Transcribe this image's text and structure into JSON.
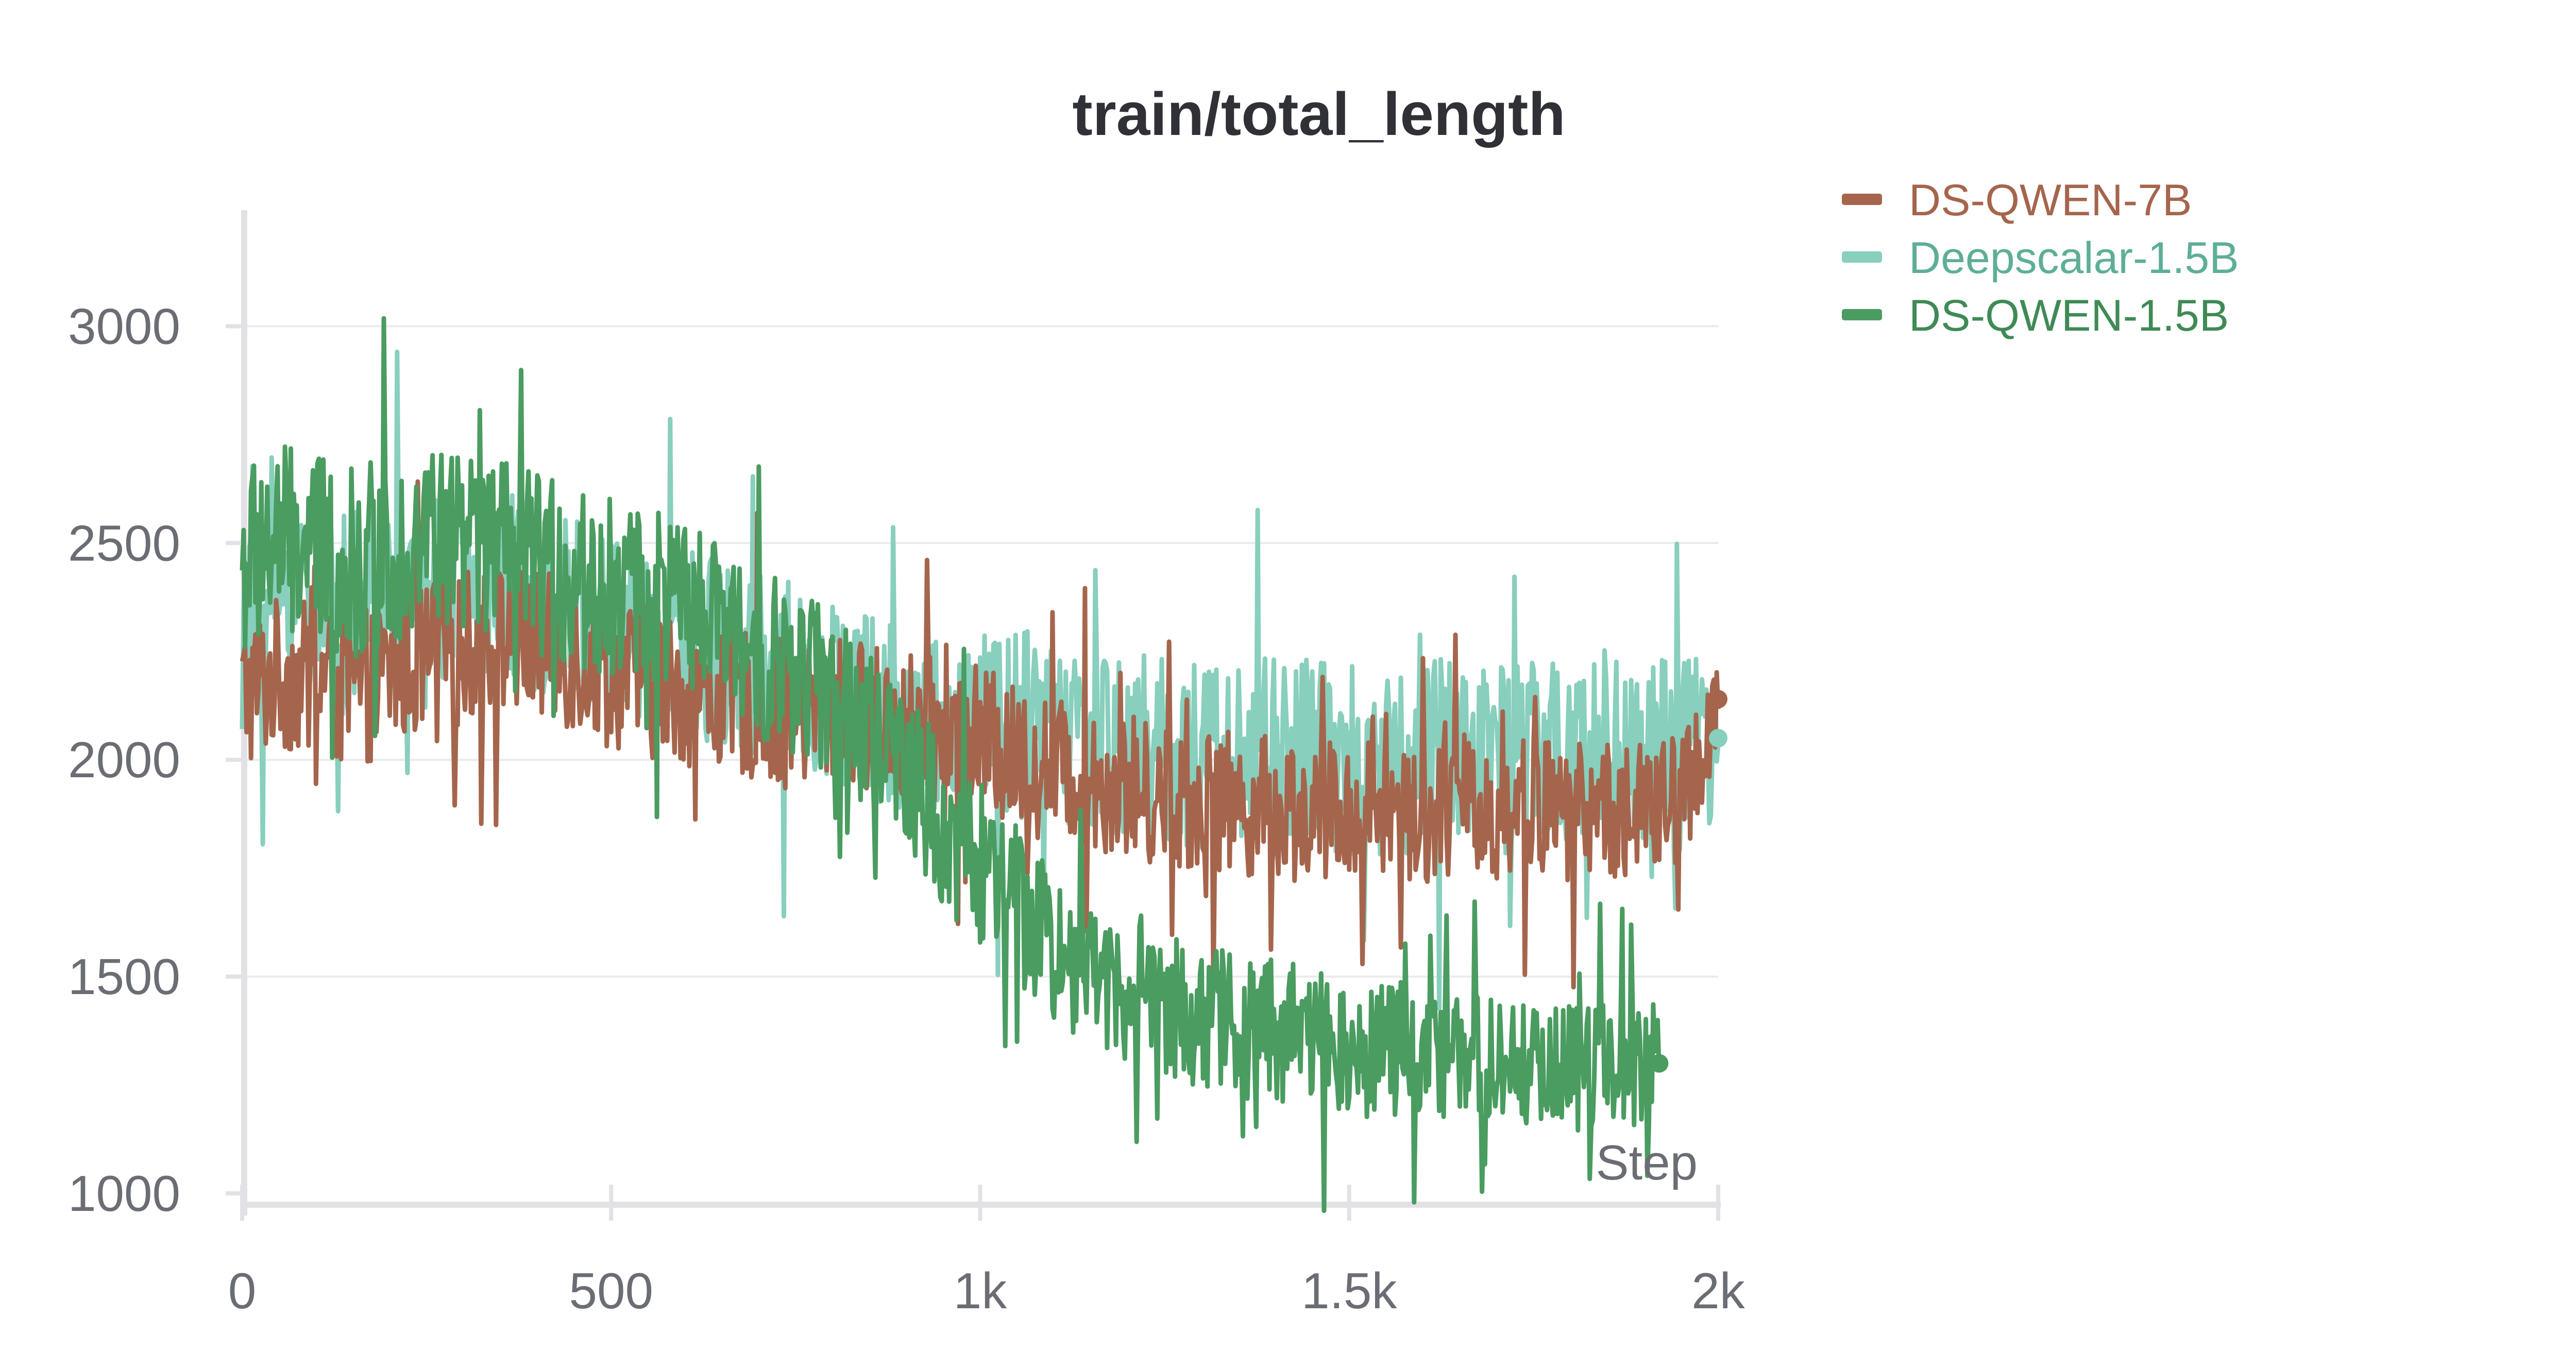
{
  "chart_data": {
    "type": "line",
    "title": "train/total_length",
    "xlabel": "Step",
    "ylabel": "",
    "xlim": [
      0,
      2000
    ],
    "ylim": [
      1000,
      3200
    ],
    "x_ticks": [
      0,
      500,
      1000,
      1500,
      2000
    ],
    "x_tick_labels": [
      "0",
      "500",
      "1k",
      "1.5k",
      "2k"
    ],
    "y_ticks": [
      1000,
      1500,
      2000,
      2500,
      3000
    ],
    "y_tick_labels": [
      "1000",
      "1500",
      "2000",
      "2500",
      "3000"
    ],
    "grid": true,
    "legend_position": "top-right",
    "series": [
      {
        "name": "DS-QWEN-7B",
        "color": "#a5654c",
        "x": [
          0,
          50,
          100,
          150,
          200,
          250,
          300,
          350,
          400,
          450,
          500,
          550,
          600,
          650,
          700,
          750,
          800,
          850,
          900,
          950,
          1000,
          1050,
          1100,
          1150,
          1200,
          1250,
          1300,
          1350,
          1400,
          1450,
          1500,
          1550,
          1600,
          1650,
          1700,
          1750,
          1800,
          1850,
          1900,
          1950,
          2000
        ],
        "values": [
          2150,
          2200,
          2180,
          2150,
          2200,
          2240,
          2260,
          2280,
          2260,
          2240,
          2200,
          2180,
          2160,
          2150,
          2120,
          2100,
          2120,
          2100,
          2080,
          2060,
          2050,
          2000,
          1980,
          1960,
          1940,
          1920,
          1900,
          1900,
          1890,
          1880,
          1880,
          1900,
          1880,
          1900,
          1880,
          1900,
          1880,
          1890,
          1880,
          1900,
          2140
        ]
      },
      {
        "name": "Deepscalar-1.5B",
        "color": "#88cfbd",
        "x": [
          0,
          50,
          100,
          150,
          200,
          250,
          300,
          350,
          400,
          450,
          500,
          550,
          600,
          650,
          700,
          750,
          800,
          850,
          900,
          950,
          1000,
          1050,
          1100,
          1150,
          1200,
          1250,
          1300,
          1350,
          1400,
          1450,
          1500,
          1550,
          1600,
          1650,
          1700,
          1750,
          1800,
          1850,
          1900,
          1950,
          2000
        ],
        "values": [
          2250,
          2400,
          2380,
          2350,
          2380,
          2400,
          2420,
          2400,
          2380,
          2350,
          2320,
          2300,
          2280,
          2250,
          2220,
          2180,
          2150,
          2120,
          2100,
          2080,
          2060,
          2080,
          2060,
          2050,
          2040,
          2030,
          2020,
          2030,
          2020,
          2020,
          2010,
          2000,
          2010,
          2020,
          2000,
          2010,
          2000,
          2020,
          2000,
          2010,
          2050
        ]
      },
      {
        "name": "DS-QWEN-1.5B",
        "color": "#4a9c60",
        "x": [
          0,
          50,
          100,
          150,
          200,
          250,
          300,
          350,
          400,
          450,
          500,
          550,
          600,
          650,
          700,
          750,
          800,
          850,
          900,
          950,
          1000,
          1050,
          1100,
          1150,
          1200,
          1250,
          1300,
          1350,
          1400,
          1450,
          1500,
          1550,
          1600,
          1650,
          1700,
          1750,
          1800,
          1850,
          1900,
          1920
        ],
        "values": [
          2450,
          2500,
          2480,
          2450,
          2480,
          2520,
          2500,
          2480,
          2450,
          2420,
          2400,
          2380,
          2350,
          2300,
          2250,
          2200,
          2150,
          2050,
          1950,
          1850,
          1750,
          1650,
          1580,
          1520,
          1480,
          1440,
          1410,
          1390,
          1370,
          1360,
          1340,
          1330,
          1320,
          1310,
          1300,
          1300,
          1290,
          1300,
          1290,
          1300
        ]
      }
    ]
  }
}
